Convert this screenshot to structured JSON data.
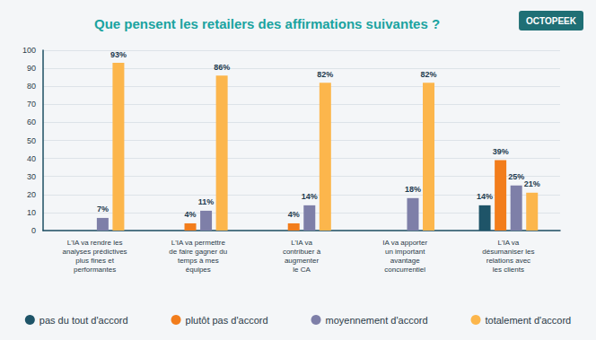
{
  "chart_data": {
    "type": "bar",
    "title": "Que pensent les retailers des affirmations suivantes ?",
    "annotations": [
      "OCTOPEEK"
    ],
    "categories": [
      "L'IA va rendre les\nanalyses prédictives\nplus fines et\nperformantes",
      "L'IA va permettre\nde faire gagner du\ntemps à mes\néquipes",
      "L'IA va\ncontribuer à\naugmenter\nle CA",
      "IA va apporter\nun important\navantage\nconcurrentiel",
      "L'IA va\ndésumaniser les\nrelations avec\nles clients"
    ],
    "series": [
      {
        "name": "pas du tout d'accord",
        "color": "#1e5468",
        "values": [
          null,
          null,
          null,
          null,
          14
        ],
        "value_labels": [
          null,
          null,
          null,
          null,
          "14%"
        ]
      },
      {
        "name": "plutôt pas d'accord",
        "color": "#f27d1c",
        "values": [
          null,
          4,
          4,
          null,
          39
        ],
        "value_labels": [
          null,
          "4%",
          "4%",
          null,
          "39%"
        ]
      },
      {
        "name": "moyennement d'accord",
        "color": "#7e7fa8",
        "values": [
          7,
          11,
          14,
          18,
          25
        ],
        "value_labels": [
          "7%",
          "11%",
          "14%",
          "18%",
          "25%"
        ]
      },
      {
        "name": "totalement d'accord",
        "color": "#fcb64c",
        "values": [
          93,
          86,
          82,
          82,
          21
        ],
        "value_labels": [
          "93%",
          "86%",
          "82%",
          "82%",
          "21%"
        ]
      }
    ],
    "ylim": [
      0,
      100
    ],
    "yticks": [
      0,
      10,
      20,
      30,
      40,
      50,
      60,
      70,
      80,
      90,
      100
    ],
    "grid": true,
    "legend": "bottom",
    "data_labels": true
  }
}
